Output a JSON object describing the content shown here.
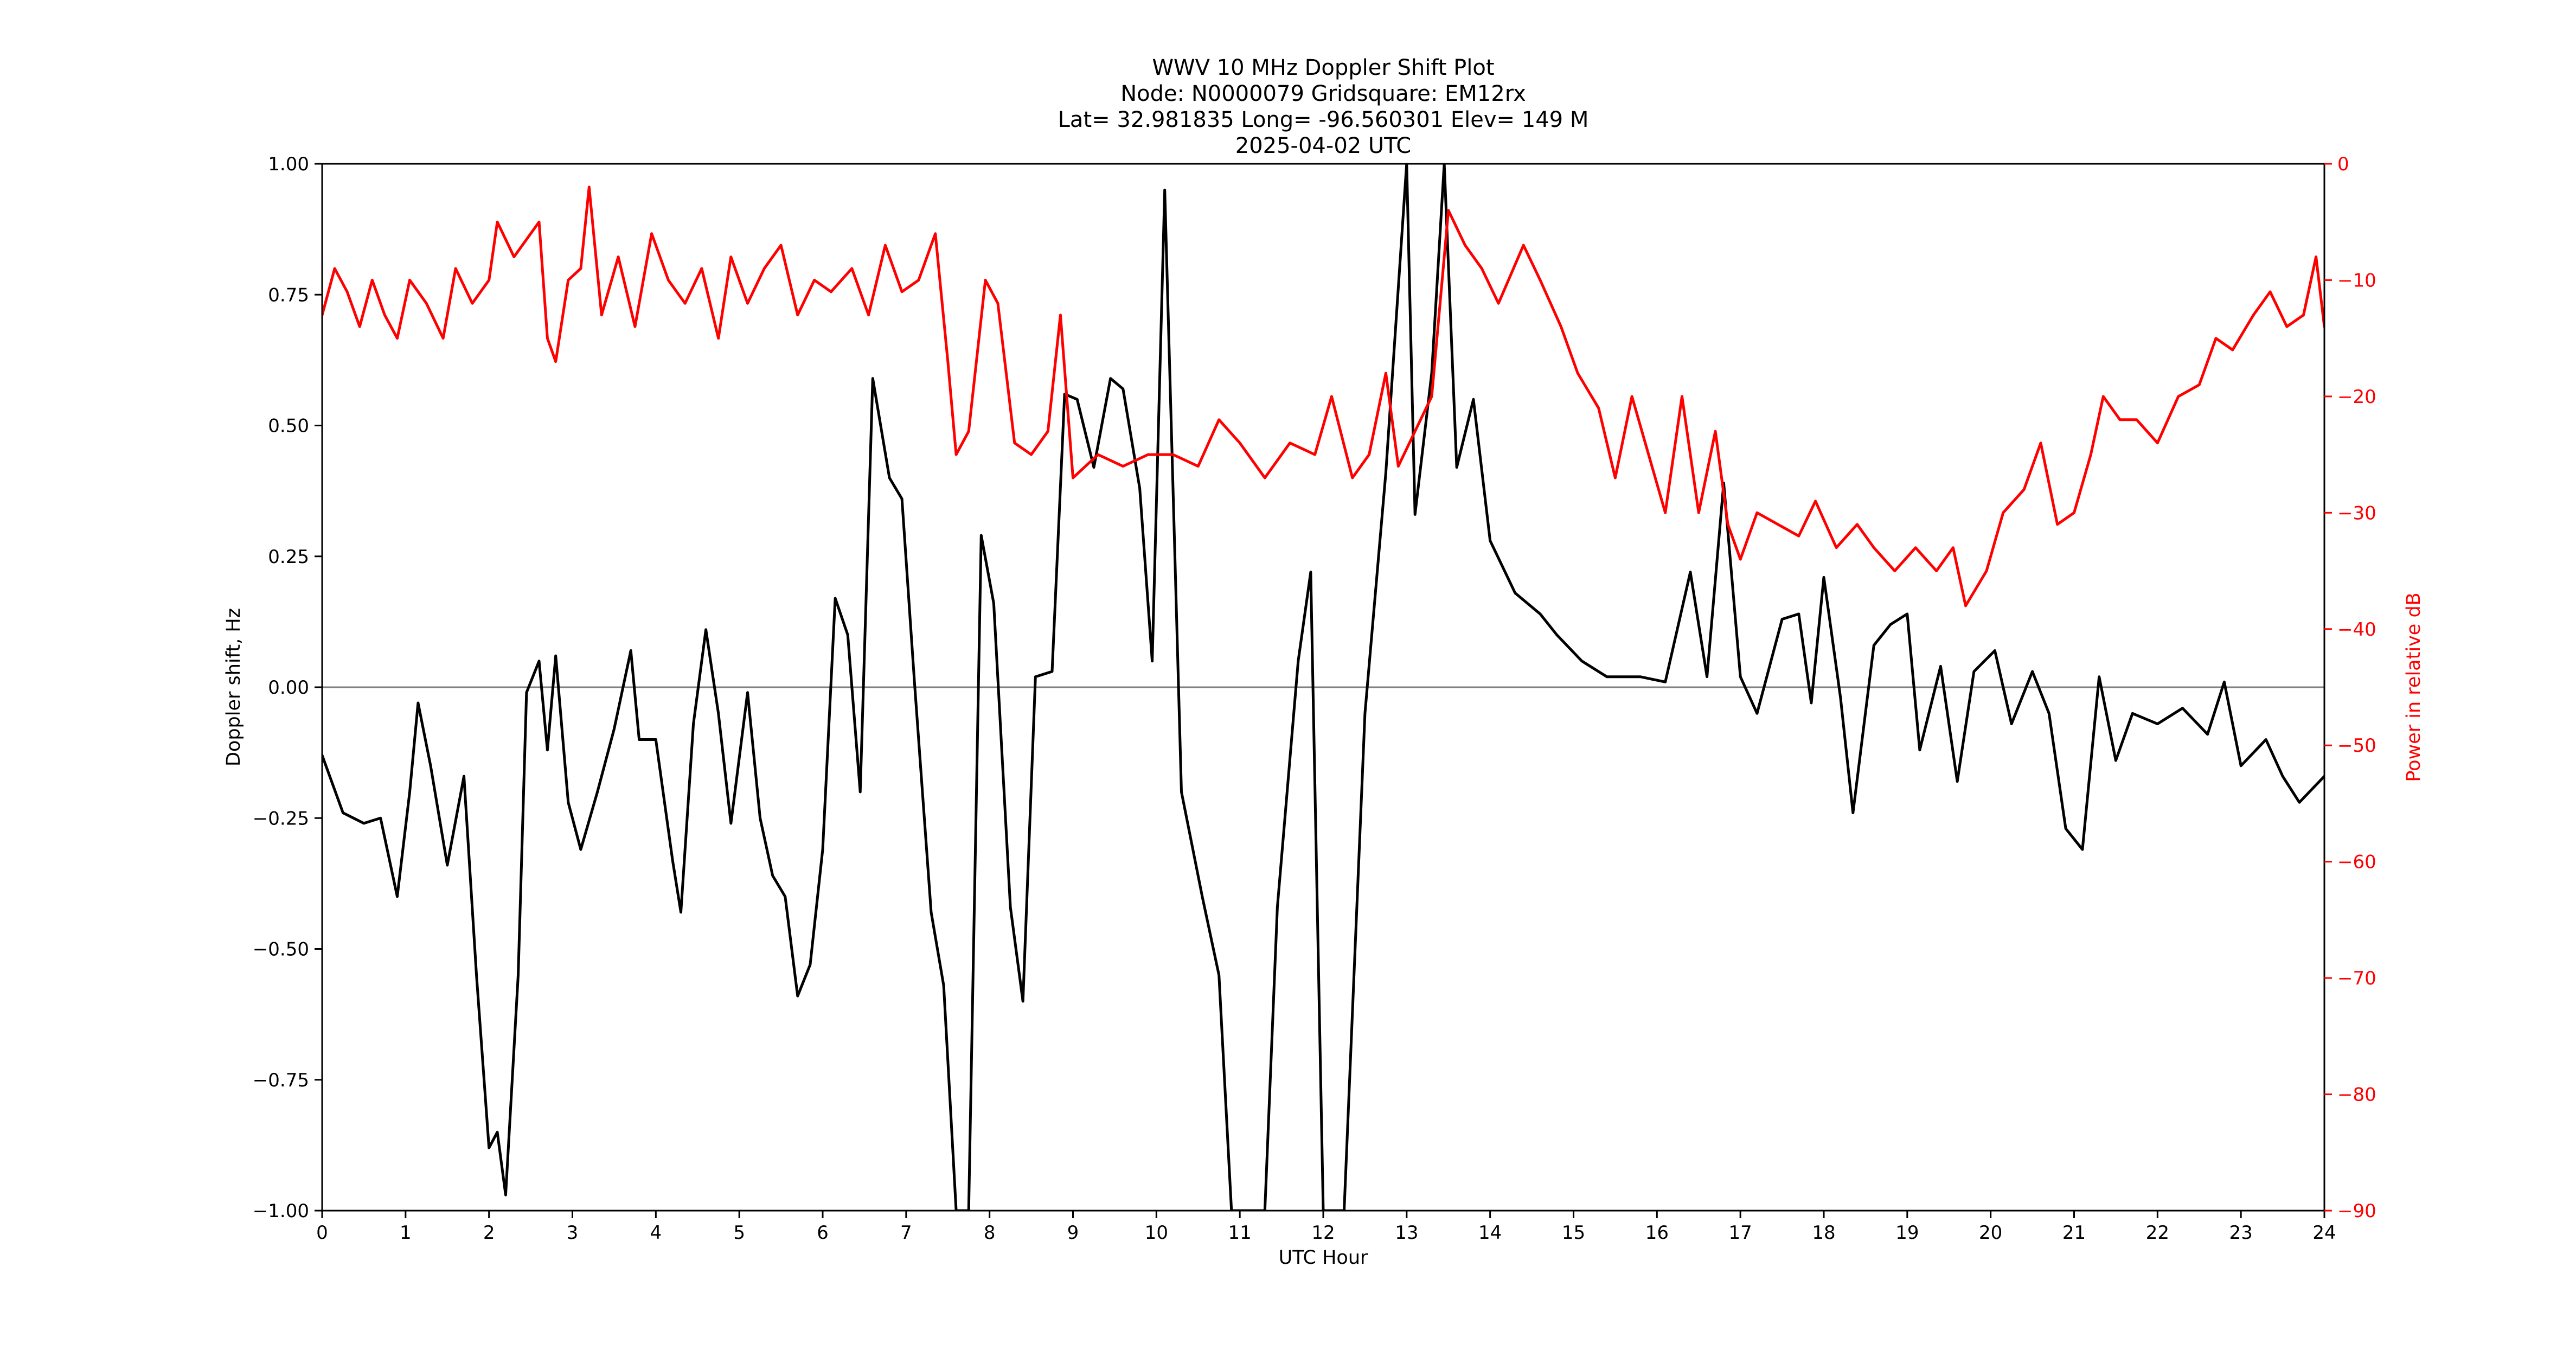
{
  "chart_data": {
    "type": "line",
    "title_lines": [
      "WWV 10 MHz Doppler Shift Plot",
      "Node:  N0000079     Gridsquare:  EM12rx",
      "Lat= 32.981835    Long= -96.560301    Elev= 149 M",
      "2025-04-02  UTC"
    ],
    "xlabel": "UTC Hour",
    "ylabel_left": "Doppler shift, Hz",
    "ylabel_right": "Power in relative dB",
    "xlim": [
      0,
      24
    ],
    "ylim_left": [
      -1.0,
      1.0
    ],
    "ylim_right": [
      -90,
      0
    ],
    "x_ticks": [
      "0",
      "1",
      "2",
      "3",
      "4",
      "5",
      "6",
      "7",
      "8",
      "9",
      "10",
      "11",
      "12",
      "13",
      "14",
      "15",
      "16",
      "17",
      "18",
      "19",
      "20",
      "21",
      "22",
      "23",
      "24"
    ],
    "y_ticks_left": [
      "1.00",
      "0.75",
      "0.50",
      "0.25",
      "0.00",
      "−0.25",
      "−0.50",
      "−0.75",
      "−1.00"
    ],
    "y_ticks_right": [
      "0",
      "−10",
      "−20",
      "−30",
      "−40",
      "−50",
      "−60",
      "−70",
      "−80",
      "−90"
    ],
    "y_ticks_left_values": [
      1.0,
      0.75,
      0.5,
      0.25,
      0.0,
      -0.25,
      -0.5,
      -0.75,
      -1.0
    ],
    "y_ticks_right_values": [
      0,
      -10,
      -20,
      -30,
      -40,
      -50,
      -60,
      -70,
      -80,
      -90
    ],
    "reference_line": 0.0,
    "grid": false,
    "colors": {
      "doppler": "#000000",
      "power": "#ff0000",
      "zero_line": "#808080",
      "right_axis": "#ff0000"
    },
    "series": [
      {
        "axis": "left",
        "color": "#000000",
        "points": [
          [
            0,
            -0.13
          ],
          [
            0.25,
            -0.24
          ],
          [
            0.5,
            -0.26
          ],
          [
            0.7,
            -0.25
          ],
          [
            0.9,
            -0.4
          ],
          [
            1.05,
            -0.2
          ],
          [
            1.15,
            -0.03
          ],
          [
            1.3,
            -0.15
          ],
          [
            1.5,
            -0.34
          ],
          [
            1.7,
            -0.17
          ],
          [
            1.85,
            -0.55
          ],
          [
            2.0,
            -0.88
          ],
          [
            2.1,
            -0.85
          ],
          [
            2.2,
            -0.97
          ],
          [
            2.35,
            -0.55
          ],
          [
            2.45,
            -0.01
          ],
          [
            2.6,
            0.05
          ],
          [
            2.7,
            -0.12
          ],
          [
            2.8,
            0.06
          ],
          [
            2.95,
            -0.22
          ],
          [
            3.1,
            -0.31
          ],
          [
            3.3,
            -0.2
          ],
          [
            3.5,
            -0.08
          ],
          [
            3.7,
            0.07
          ],
          [
            3.8,
            -0.1
          ],
          [
            4.0,
            -0.1
          ],
          [
            4.2,
            -0.33
          ],
          [
            4.3,
            -0.43
          ],
          [
            4.45,
            -0.07
          ],
          [
            4.6,
            0.11
          ],
          [
            4.75,
            -0.05
          ],
          [
            4.9,
            -0.26
          ],
          [
            5.1,
            -0.01
          ],
          [
            5.25,
            -0.25
          ],
          [
            5.4,
            -0.36
          ],
          [
            5.55,
            -0.4
          ],
          [
            5.7,
            -0.59
          ],
          [
            5.85,
            -0.53
          ],
          [
            6.0,
            -0.31
          ],
          [
            6.15,
            0.17
          ],
          [
            6.3,
            0.1
          ],
          [
            6.45,
            -0.2
          ],
          [
            6.6,
            0.59
          ],
          [
            6.8,
            0.4
          ],
          [
            6.95,
            0.36
          ],
          [
            7.1,
            0.01
          ],
          [
            7.3,
            -0.43
          ],
          [
            7.45,
            -0.57
          ],
          [
            7.6,
            -1.0
          ],
          [
            7.75,
            -1.0
          ],
          [
            7.9,
            0.29
          ],
          [
            8.05,
            0.16
          ],
          [
            8.25,
            -0.42
          ],
          [
            8.4,
            -0.6
          ],
          [
            8.55,
            0.02
          ],
          [
            8.75,
            0.03
          ],
          [
            8.9,
            0.56
          ],
          [
            9.05,
            0.55
          ],
          [
            9.25,
            0.42
          ],
          [
            9.45,
            0.59
          ],
          [
            9.6,
            0.57
          ],
          [
            9.8,
            0.38
          ],
          [
            9.95,
            0.05
          ],
          [
            10.1,
            0.95
          ],
          [
            10.3,
            -0.2
          ],
          [
            10.55,
            -0.4
          ],
          [
            10.75,
            -0.55
          ],
          [
            10.9,
            -1.0
          ],
          [
            11.3,
            -1.0
          ],
          [
            11.45,
            -0.42
          ],
          [
            11.7,
            0.05
          ],
          [
            11.85,
            0.22
          ],
          [
            12.0,
            -1.0
          ],
          [
            12.25,
            -1.0
          ],
          [
            12.5,
            -0.05
          ],
          [
            12.75,
            0.41
          ],
          [
            13.0,
            1.0
          ],
          [
            13.1,
            0.33
          ],
          [
            13.3,
            0.6
          ],
          [
            13.45,
            1.0
          ],
          [
            13.6,
            0.42
          ],
          [
            13.8,
            0.55
          ],
          [
            14.0,
            0.28
          ],
          [
            14.3,
            0.18
          ],
          [
            14.6,
            0.14
          ],
          [
            14.8,
            0.1
          ],
          [
            15.1,
            0.05
          ],
          [
            15.4,
            0.02
          ],
          [
            15.8,
            0.02
          ],
          [
            16.1,
            0.01
          ],
          [
            16.4,
            0.22
          ],
          [
            16.6,
            0.02
          ],
          [
            16.8,
            0.39
          ],
          [
            17.0,
            0.02
          ],
          [
            17.2,
            -0.05
          ],
          [
            17.5,
            0.13
          ],
          [
            17.7,
            0.14
          ],
          [
            17.85,
            -0.03
          ],
          [
            18.0,
            0.21
          ],
          [
            18.2,
            -0.02
          ],
          [
            18.35,
            -0.24
          ],
          [
            18.6,
            0.08
          ],
          [
            18.8,
            0.12
          ],
          [
            19.0,
            0.14
          ],
          [
            19.15,
            -0.12
          ],
          [
            19.4,
            0.04
          ],
          [
            19.6,
            -0.18
          ],
          [
            19.8,
            0.03
          ],
          [
            20.05,
            0.07
          ],
          [
            20.25,
            -0.07
          ],
          [
            20.5,
            0.03
          ],
          [
            20.7,
            -0.05
          ],
          [
            20.9,
            -0.27
          ],
          [
            21.1,
            -0.31
          ],
          [
            21.3,
            0.02
          ],
          [
            21.5,
            -0.14
          ],
          [
            21.7,
            -0.05
          ],
          [
            22.0,
            -0.07
          ],
          [
            22.3,
            -0.04
          ],
          [
            22.6,
            -0.09
          ],
          [
            22.8,
            0.01
          ],
          [
            23.0,
            -0.15
          ],
          [
            23.3,
            -0.1
          ],
          [
            23.5,
            -0.17
          ],
          [
            23.7,
            -0.22
          ],
          [
            24.0,
            -0.17
          ]
        ]
      },
      {
        "axis": "right",
        "color": "#ff0000",
        "points": [
          [
            0,
            -13
          ],
          [
            0.15,
            -9
          ],
          [
            0.3,
            -11
          ],
          [
            0.45,
            -14
          ],
          [
            0.6,
            -10
          ],
          [
            0.75,
            -13
          ],
          [
            0.9,
            -15
          ],
          [
            1.05,
            -10
          ],
          [
            1.25,
            -12
          ],
          [
            1.45,
            -15
          ],
          [
            1.6,
            -9
          ],
          [
            1.8,
            -12
          ],
          [
            2.0,
            -10
          ],
          [
            2.1,
            -5
          ],
          [
            2.3,
            -8
          ],
          [
            2.5,
            -6
          ],
          [
            2.6,
            -5
          ],
          [
            2.7,
            -15
          ],
          [
            2.8,
            -17
          ],
          [
            2.95,
            -10
          ],
          [
            3.1,
            -9
          ],
          [
            3.2,
            -2
          ],
          [
            3.35,
            -13
          ],
          [
            3.55,
            -8
          ],
          [
            3.75,
            -14
          ],
          [
            3.95,
            -6
          ],
          [
            4.15,
            -10
          ],
          [
            4.35,
            -12
          ],
          [
            4.55,
            -9
          ],
          [
            4.75,
            -15
          ],
          [
            4.9,
            -8
          ],
          [
            5.1,
            -12
          ],
          [
            5.3,
            -9
          ],
          [
            5.5,
            -7
          ],
          [
            5.7,
            -13
          ],
          [
            5.9,
            -10
          ],
          [
            6.1,
            -11
          ],
          [
            6.35,
            -9
          ],
          [
            6.55,
            -13
          ],
          [
            6.75,
            -7
          ],
          [
            6.95,
            -11
          ],
          [
            7.15,
            -10
          ],
          [
            7.35,
            -6
          ],
          [
            7.5,
            -17
          ],
          [
            7.6,
            -25
          ],
          [
            7.75,
            -23
          ],
          [
            7.95,
            -10
          ],
          [
            8.1,
            -12
          ],
          [
            8.3,
            -24
          ],
          [
            8.5,
            -25
          ],
          [
            8.7,
            -23
          ],
          [
            8.85,
            -13
          ],
          [
            9.0,
            -27
          ],
          [
            9.3,
            -25
          ],
          [
            9.6,
            -26
          ],
          [
            9.9,
            -25
          ],
          [
            10.2,
            -25
          ],
          [
            10.5,
            -26
          ],
          [
            10.75,
            -22
          ],
          [
            11.0,
            -24
          ],
          [
            11.3,
            -27
          ],
          [
            11.6,
            -24
          ],
          [
            11.9,
            -25
          ],
          [
            12.1,
            -20
          ],
          [
            12.35,
            -27
          ],
          [
            12.55,
            -25
          ],
          [
            12.75,
            -18
          ],
          [
            12.9,
            -26
          ],
          [
            13.1,
            -23
          ],
          [
            13.3,
            -20
          ],
          [
            13.5,
            -4
          ],
          [
            13.7,
            -7
          ],
          [
            13.9,
            -9
          ],
          [
            14.1,
            -12
          ],
          [
            14.4,
            -7
          ],
          [
            14.6,
            -10
          ],
          [
            14.85,
            -14
          ],
          [
            15.05,
            -18
          ],
          [
            15.3,
            -21
          ],
          [
            15.5,
            -27
          ],
          [
            15.7,
            -20
          ],
          [
            15.9,
            -25
          ],
          [
            16.1,
            -30
          ],
          [
            16.3,
            -20
          ],
          [
            16.5,
            -30
          ],
          [
            16.7,
            -23
          ],
          [
            16.85,
            -31
          ],
          [
            17.0,
            -34
          ],
          [
            17.2,
            -30
          ],
          [
            17.45,
            -31
          ],
          [
            17.7,
            -32
          ],
          [
            17.9,
            -29
          ],
          [
            18.15,
            -33
          ],
          [
            18.4,
            -31
          ],
          [
            18.6,
            -33
          ],
          [
            18.85,
            -35
          ],
          [
            19.1,
            -33
          ],
          [
            19.35,
            -35
          ],
          [
            19.55,
            -33
          ],
          [
            19.7,
            -38
          ],
          [
            19.95,
            -35
          ],
          [
            20.15,
            -30
          ],
          [
            20.4,
            -28
          ],
          [
            20.6,
            -24
          ],
          [
            20.8,
            -31
          ],
          [
            21.0,
            -30
          ],
          [
            21.2,
            -25
          ],
          [
            21.35,
            -20
          ],
          [
            21.55,
            -22
          ],
          [
            21.75,
            -22
          ],
          [
            22.0,
            -24
          ],
          [
            22.25,
            -20
          ],
          [
            22.5,
            -19
          ],
          [
            22.7,
            -15
          ],
          [
            22.9,
            -16
          ],
          [
            23.15,
            -13
          ],
          [
            23.35,
            -11
          ],
          [
            23.55,
            -14
          ],
          [
            23.75,
            -13
          ],
          [
            23.9,
            -8
          ],
          [
            24.0,
            -14
          ]
        ]
      }
    ]
  }
}
